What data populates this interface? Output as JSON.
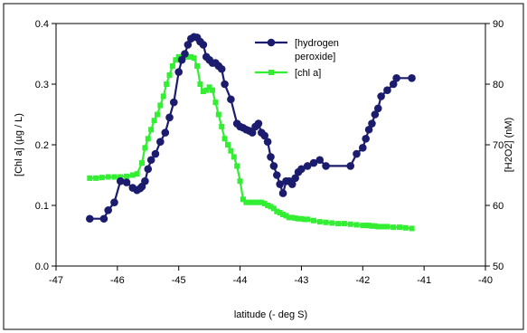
{
  "chart_data": {
    "type": "line",
    "title": "",
    "xlabel": "latitude (- deg S)",
    "ylabel_left": "[Chl a] (µg / L)",
    "ylabel_right": "[H2O2] (nM)",
    "xlim": [
      -47,
      -40
    ],
    "ylim_left": [
      0,
      0.4
    ],
    "ylim_right": [
      50,
      90
    ],
    "x_ticks": [
      "-47",
      "-46",
      "-45",
      "-44",
      "-43",
      "-42",
      "-41",
      "-40"
    ],
    "y_ticks_left": [
      "0.0",
      "0.1",
      "0.2",
      "0.3",
      "0.4"
    ],
    "y_ticks_right": [
      "50",
      "60",
      "70",
      "80",
      "90"
    ],
    "grid": false,
    "legend_position": "top-right",
    "series": [
      {
        "name": "[hydrogen peroxide]",
        "axis": "right",
        "color": "#1c1c6e",
        "marker": "circle",
        "x": [
          -46.45,
          -46.22,
          -46.15,
          -46.05,
          -45.95,
          -45.85,
          -45.75,
          -45.68,
          -45.63,
          -45.6,
          -45.55,
          -45.5,
          -45.45,
          -45.38,
          -45.3,
          -45.22,
          -45.15,
          -45.08,
          -45,
          -44.95,
          -44.9,
          -44.85,
          -44.8,
          -44.75,
          -44.7,
          -44.65,
          -44.6,
          -44.55,
          -44.5,
          -44.45,
          -44.4,
          -44.35,
          -44.3,
          -44.25,
          -44.15,
          -44.05,
          -44,
          -43.95,
          -43.9,
          -43.85,
          -43.8,
          -43.75,
          -43.7,
          -43.65,
          -43.6,
          -43.55,
          -43.5,
          -43.45,
          -43.4,
          -43.35,
          -43.3,
          -43.25,
          -43.2,
          -43.15,
          -43.1,
          -43.05,
          -43,
          -42.9,
          -42.8,
          -42.7,
          -42.6,
          -42.2,
          -42.1,
          -42,
          -41.95,
          -41.9,
          -41.85,
          -41.8,
          -41.75,
          -41.7,
          -41.6,
          -41.5,
          -41.45,
          -41.2
        ],
        "y": [
          57.8,
          57.8,
          59.2,
          60.5,
          64,
          63.8,
          62.9,
          62.5,
          62.8,
          63.1,
          64,
          66,
          67.5,
          68.5,
          70.5,
          72,
          74.5,
          77,
          82,
          84,
          85,
          86.5,
          87.5,
          87.8,
          87.7,
          87,
          86.5,
          84.5,
          84,
          83.5,
          83.5,
          83,
          82.5,
          80,
          77.5,
          73.5,
          73,
          72.8,
          72.5,
          72.3,
          72,
          73,
          73.5,
          72,
          71.5,
          70.5,
          68,
          66.5,
          65,
          63.5,
          62,
          64,
          64,
          63.5,
          64.5,
          65.5,
          66,
          66.5,
          67,
          67.5,
          66.5,
          66.5,
          68.5,
          69.5,
          71,
          72.5,
          73.5,
          75,
          76,
          78,
          79,
          80,
          81,
          81
        ]
      },
      {
        "name": "[chl a]",
        "axis": "left",
        "color": "#33ee33",
        "marker": "square",
        "x": [
          -46.45,
          -46.35,
          -46.25,
          -46.15,
          -46.05,
          -45.95,
          -45.85,
          -45.75,
          -45.68,
          -45.6,
          -45.55,
          -45.5,
          -45.45,
          -45.4,
          -45.35,
          -45.3,
          -45.25,
          -45.2,
          -45.15,
          -45.1,
          -45.05,
          -45,
          -44.95,
          -44.9,
          -44.85,
          -44.8,
          -44.75,
          -44.7,
          -44.65,
          -44.6,
          -44.55,
          -44.5,
          -44.45,
          -44.4,
          -44.35,
          -44.3,
          -44.25,
          -44.2,
          -44.15,
          -44.1,
          -44.05,
          -44,
          -43.95,
          -43.9,
          -43.85,
          -43.8,
          -43.75,
          -43.7,
          -43.65,
          -43.6,
          -43.55,
          -43.5,
          -43.45,
          -43.4,
          -43.35,
          -43.3,
          -43.25,
          -43.2,
          -43.15,
          -43.1,
          -43.05,
          -43,
          -42.95,
          -42.9,
          -42.8,
          -42.7,
          -42.6,
          -42.5,
          -42.4,
          -42.3,
          -42.2,
          -42.1,
          -42,
          -41.95,
          -41.9,
          -41.85,
          -41.8,
          -41.75,
          -41.7,
          -41.65,
          -41.6,
          -41.5,
          -41.4,
          -41.3,
          -41.2
        ],
        "y": [
          0.145,
          0.145,
          0.146,
          0.147,
          0.147,
          0.147,
          0.148,
          0.15,
          0.152,
          0.17,
          0.195,
          0.21,
          0.225,
          0.24,
          0.25,
          0.265,
          0.28,
          0.3,
          0.315,
          0.33,
          0.34,
          0.345,
          0.345,
          0.346,
          0.345,
          0.345,
          0.343,
          0.33,
          0.3,
          0.288,
          0.29,
          0.295,
          0.29,
          0.27,
          0.25,
          0.23,
          0.21,
          0.2,
          0.19,
          0.18,
          0.165,
          0.14,
          0.11,
          0.105,
          0.105,
          0.105,
          0.105,
          0.105,
          0.105,
          0.103,
          0.1,
          0.098,
          0.095,
          0.09,
          0.088,
          0.085,
          0.083,
          0.08,
          0.08,
          0.079,
          0.078,
          0.078,
          0.077,
          0.077,
          0.075,
          0.073,
          0.072,
          0.071,
          0.07,
          0.07,
          0.069,
          0.068,
          0.067,
          0.067,
          0.067,
          0.066,
          0.066,
          0.065,
          0.065,
          0.065,
          0.065,
          0.064,
          0.064,
          0.063,
          0.062
        ]
      }
    ]
  }
}
